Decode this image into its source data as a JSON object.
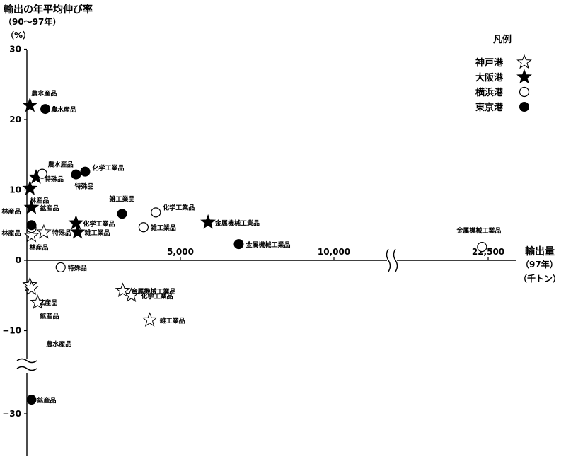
{
  "chart_data": {
    "type": "scatter",
    "ylabel": "輸出の年平均伸び率",
    "ylabel_sub": "（90～97年）",
    "yunit": "（%）",
    "xlabel": "輸出量",
    "xlabel_sub": "（97年）",
    "xunit": "（千トン）",
    "legend_title": "凡例",
    "legend_position": "top-right",
    "grid": false,
    "y_ticks": [
      {
        "value": 30,
        "label": "30"
      },
      {
        "value": 20,
        "label": "20"
      },
      {
        "value": 10,
        "label": "10"
      },
      {
        "value": 0,
        "label": "0"
      },
      {
        "value": -10,
        "label": "−10"
      },
      {
        "value": -30,
        "label": "−30"
      }
    ],
    "x_ticks": [
      {
        "value": 5000,
        "label": "5,000"
      },
      {
        "value": 10000,
        "label": "10,000"
      },
      {
        "value": 22500,
        "label": "22,500"
      }
    ],
    "axis_breaks": {
      "x": "between 10,000 and 22,500",
      "y": "between −10 and −30"
    },
    "series": [
      {
        "name": "神戸港",
        "marker": "star-open",
        "points": [
          {
            "x": 100,
            "y": -3.5,
            "label": "鉱産品"
          },
          {
            "x": 150,
            "y": -4,
            "label": "鉱産品"
          },
          {
            "x": 350,
            "y": -6,
            "label": "農水産品"
          },
          {
            "x": 550,
            "y": 4,
            "label": "特殊品"
          },
          {
            "x": 150,
            "y": 3.5,
            "label": "林産品"
          },
          {
            "x": 3400,
            "y": -5,
            "label": "化学工業品"
          },
          {
            "x": 4000,
            "y": -8.5,
            "label": "雑工業品"
          },
          {
            "x": 10600,
            "y": -4.3,
            "label": "金属機械工業品"
          }
        ]
      },
      {
        "name": "大阪港",
        "marker": "star-filled",
        "points": [
          {
            "x": 100,
            "y": 22,
            "label": "農水産品"
          },
          {
            "x": 300,
            "y": 11.8,
            "label": "特殊品"
          },
          {
            "x": 100,
            "y": 10.2,
            "label": "林産品"
          },
          {
            "x": 150,
            "y": 7.5,
            "label": "鉱産品"
          },
          {
            "x": 1600,
            "y": 5.3,
            "label": "化学工業品"
          },
          {
            "x": 1650,
            "y": 4,
            "label": "雑工業品"
          },
          {
            "x": 5900,
            "y": 5.4,
            "label": "金属機械工業品"
          }
        ]
      },
      {
        "name": "横浜港",
        "marker": "circle-open",
        "points": [
          {
            "x": 500,
            "y": 12.3,
            "label": "農水産品"
          },
          {
            "x": 150,
            "y": 4.6,
            "label": "林産品"
          },
          {
            "x": 1100,
            "y": -1,
            "label": "特殊品"
          },
          {
            "x": 4200,
            "y": 6.8,
            "label": "化学工業品"
          },
          {
            "x": 3800,
            "y": 4.7,
            "label": "雑工業品"
          },
          {
            "x": 22300,
            "y": 1.9,
            "label": "金属機械工業品"
          }
        ]
      },
      {
        "name": "東京港",
        "marker": "circle-filled",
        "points": [
          {
            "x": 600,
            "y": 21.5,
            "label": "農水産品"
          },
          {
            "x": 1900,
            "y": 12.6,
            "label": "化学工業品"
          },
          {
            "x": 1600,
            "y": 12.2,
            "label": "特殊品"
          },
          {
            "x": 3100,
            "y": 6.6,
            "label": "雑工業品"
          },
          {
            "x": 150,
            "y": 5,
            "label": "林産品"
          },
          {
            "x": 6900,
            "y": 2.3,
            "label": "金属機械工業品"
          },
          {
            "x": 150,
            "y": -32,
            "label": "鉱産品"
          }
        ]
      }
    ]
  }
}
